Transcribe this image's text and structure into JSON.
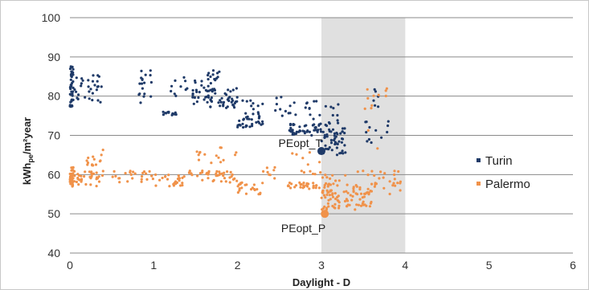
{
  "chart_data": {
    "type": "scatter",
    "xlabel": "Daylight - D",
    "ylabel": {
      "base": "kWh",
      "sub": "pe",
      "rest": "/m²year"
    },
    "xlim": [
      0,
      6
    ],
    "ylim": [
      40,
      100
    ],
    "xticks": [
      "0",
      "1",
      "2",
      "3",
      "4",
      "5",
      "6"
    ],
    "yticks": [
      "40",
      "50",
      "60",
      "70",
      "80",
      "90",
      "100"
    ],
    "grid": "horizontal",
    "highlight_band": {
      "from": 3,
      "to": 4,
      "color": "#e0e0e0"
    },
    "legend_position": "right",
    "series": [
      {
        "name": "Turin",
        "color": "#1f3a68",
        "clusters": [
          {
            "x": [
              0.0,
              0.04
            ],
            "y": [
              77,
              88
            ],
            "n": 45
          },
          {
            "x": [
              0.05,
              0.4
            ],
            "y": [
              78,
              86
            ],
            "n": 30
          },
          {
            "x": [
              0.8,
              1.0
            ],
            "y": [
              78,
              87
            ],
            "n": 18
          },
          {
            "x": [
              1.1,
              1.3
            ],
            "y": [
              75,
              76
            ],
            "n": 14
          },
          {
            "x": [
              1.2,
              1.4
            ],
            "y": [
              80,
              85
            ],
            "n": 10
          },
          {
            "x": [
              1.45,
              1.7
            ],
            "y": [
              78,
              84
            ],
            "n": 25
          },
          {
            "x": [
              1.6,
              2.0
            ],
            "y": [
              77,
              82
            ],
            "n": 45
          },
          {
            "x": [
              1.6,
              1.8
            ],
            "y": [
              83,
              87
            ],
            "n": 12
          },
          {
            "x": [
              2.0,
              2.3
            ],
            "y": [
              72,
              75
            ],
            "n": 30
          },
          {
            "x": [
              2.05,
              2.3
            ],
            "y": [
              75,
              79
            ],
            "n": 12
          },
          {
            "x": [
              2.4,
              2.7
            ],
            "y": [
              74,
              80
            ],
            "n": 12
          },
          {
            "x": [
              2.6,
              3.0
            ],
            "y": [
              70,
              73
            ],
            "n": 45
          },
          {
            "x": [
              2.8,
              3.0
            ],
            "y": [
              74,
              79
            ],
            "n": 10
          },
          {
            "x": [
              3.0,
              3.3
            ],
            "y": [
              65,
              72
            ],
            "n": 55
          },
          {
            "x": [
              3.05,
              3.2
            ],
            "y": [
              72,
              78
            ],
            "n": 12
          },
          {
            "x": [
              3.4,
              3.8
            ],
            "y": [
              68,
              74
            ],
            "n": 12
          },
          {
            "x": [
              3.5,
              3.75
            ],
            "y": [
              76,
              83
            ],
            "n": 6
          }
        ]
      },
      {
        "name": "Palermo",
        "color": "#f0924a",
        "clusters": [
          {
            "x": [
              0.0,
              0.04
            ],
            "y": [
              57,
              62
            ],
            "n": 35
          },
          {
            "x": [
              0.05,
              0.4
            ],
            "y": [
              57,
              61
            ],
            "n": 35
          },
          {
            "x": [
              0.2,
              0.4
            ],
            "y": [
              62,
              67
            ],
            "n": 14
          },
          {
            "x": [
              0.5,
              1.0
            ],
            "y": [
              58,
              61
            ],
            "n": 25
          },
          {
            "x": [
              1.0,
              1.4
            ],
            "y": [
              57,
              60
            ],
            "n": 25
          },
          {
            "x": [
              1.4,
              2.0
            ],
            "y": [
              58,
              61
            ],
            "n": 40
          },
          {
            "x": [
              1.5,
              2.0
            ],
            "y": [
              62,
              67
            ],
            "n": 15
          },
          {
            "x": [
              2.0,
              2.3
            ],
            "y": [
              55,
              58
            ],
            "n": 22
          },
          {
            "x": [
              2.3,
              2.45
            ],
            "y": [
              59,
              62
            ],
            "n": 8
          },
          {
            "x": [
              2.6,
              3.0
            ],
            "y": [
              56,
              58
            ],
            "n": 30
          },
          {
            "x": [
              2.6,
              3.0
            ],
            "y": [
              60,
              66
            ],
            "n": 12
          },
          {
            "x": [
              3.0,
              3.6
            ],
            "y": [
              51,
              56
            ],
            "n": 80
          },
          {
            "x": [
              3.0,
              3.4
            ],
            "y": [
              56,
              60
            ],
            "n": 20
          },
          {
            "x": [
              3.4,
              3.95
            ],
            "y": [
              55,
              61
            ],
            "n": 35
          },
          {
            "x": [
              3.5,
              3.8
            ],
            "y": [
              65,
              84
            ],
            "n": 12
          }
        ]
      }
    ],
    "annotations": [
      {
        "text": "PEopt_T",
        "x": 3.0,
        "y": 66,
        "series": "Turin"
      },
      {
        "text": "PEopt_P",
        "x": 3.04,
        "y": 50,
        "series": "Palermo"
      }
    ]
  }
}
